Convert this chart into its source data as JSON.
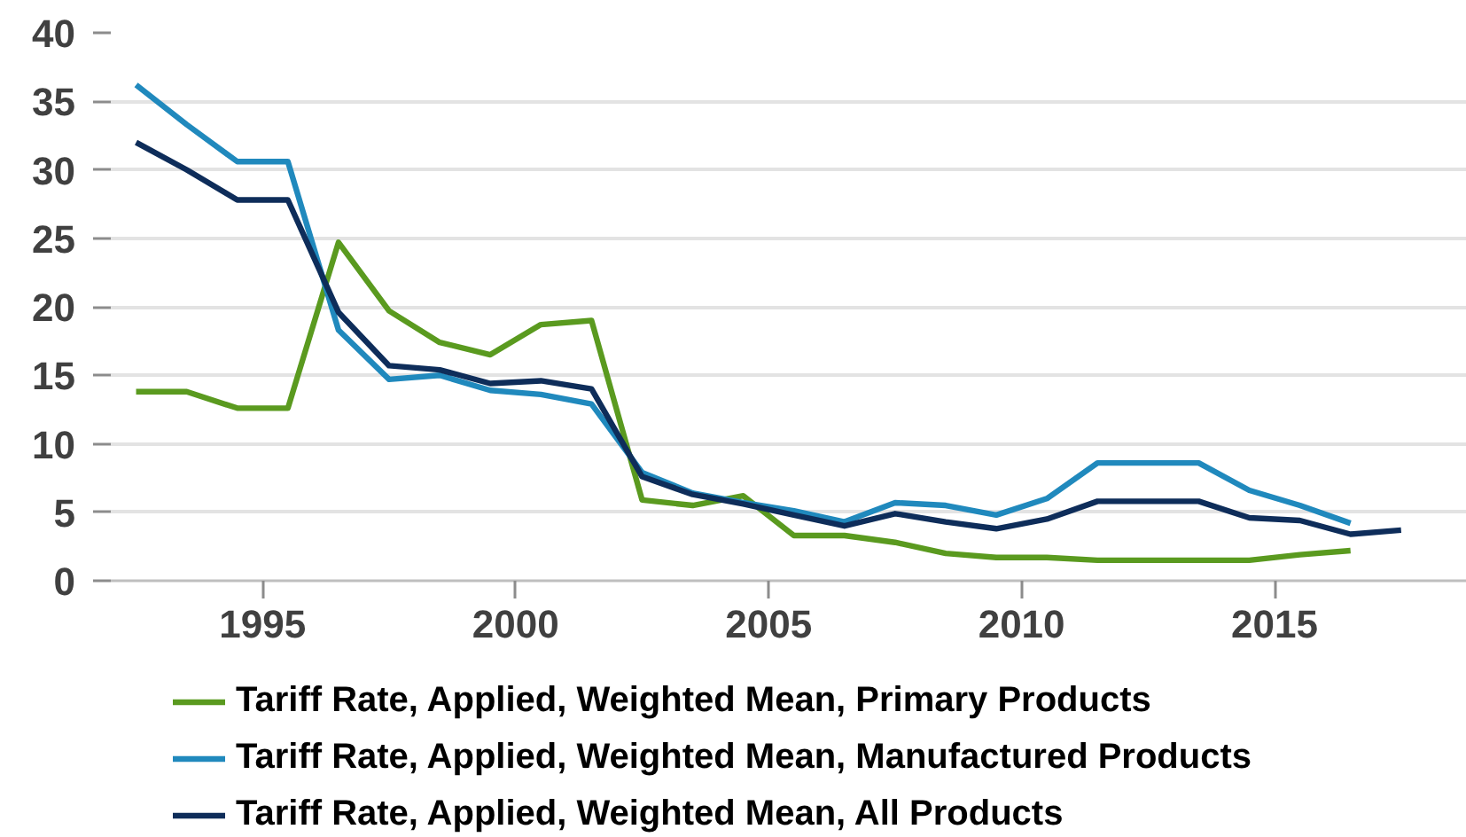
{
  "chart_data": {
    "type": "line",
    "x": [
      1992.5,
      1993.5,
      1994.5,
      1995.5,
      1996.5,
      1997.5,
      1998.5,
      1999.5,
      2000.5,
      2001.5,
      2002.5,
      2003.5,
      2004.5,
      2005.5,
      2006.5,
      2007.5,
      2008.5,
      2009.5,
      2010.5,
      2011.5,
      2012.5,
      2013.5,
      2014.5,
      2015.5,
      2016.5,
      2017.5
    ],
    "series": [
      {
        "name": "Tariff Rate, Applied, Weighted Mean, Primary Products",
        "color": "#5a9a1f",
        "values": [
          13.8,
          13.8,
          12.6,
          12.6,
          24.7,
          19.7,
          17.4,
          16.5,
          18.7,
          19.0,
          5.9,
          5.5,
          6.2,
          3.3,
          3.3,
          2.8,
          2.0,
          1.7,
          1.7,
          1.5,
          1.5,
          1.5,
          1.5,
          1.9,
          2.2,
          null
        ]
      },
      {
        "name": "Tariff Rate, Applied, Weighted Mean, Manufactured Products",
        "color": "#2089bd",
        "values": [
          36.2,
          33.3,
          30.6,
          30.6,
          18.3,
          14.7,
          15.0,
          13.9,
          13.6,
          12.9,
          7.9,
          6.4,
          5.7,
          5.1,
          4.3,
          5.7,
          5.5,
          4.8,
          6.0,
          8.6,
          8.6,
          8.6,
          6.6,
          5.5,
          4.2,
          null
        ]
      },
      {
        "name": "Tariff Rate, Applied, Weighted Mean, All Products",
        "color": "#0e2d5a",
        "values": [
          32.0,
          30.0,
          27.8,
          27.8,
          19.6,
          15.7,
          15.4,
          14.4,
          14.6,
          14.0,
          7.6,
          6.3,
          5.6,
          4.8,
          4.0,
          4.9,
          4.3,
          3.8,
          4.5,
          5.8,
          5.8,
          5.8,
          4.6,
          4.4,
          3.4,
          3.7
        ]
      }
    ],
    "xlim": [
      1992,
      2018.8
    ],
    "xticks": [
      1995,
      2000,
      2005,
      2010,
      2015
    ],
    "ylim": [
      0,
      40
    ],
    "yticks": [
      0,
      5,
      10,
      15,
      20,
      25,
      30,
      35,
      40
    ],
    "grid": "y",
    "legend": "bottom",
    "line_style": "solid"
  }
}
